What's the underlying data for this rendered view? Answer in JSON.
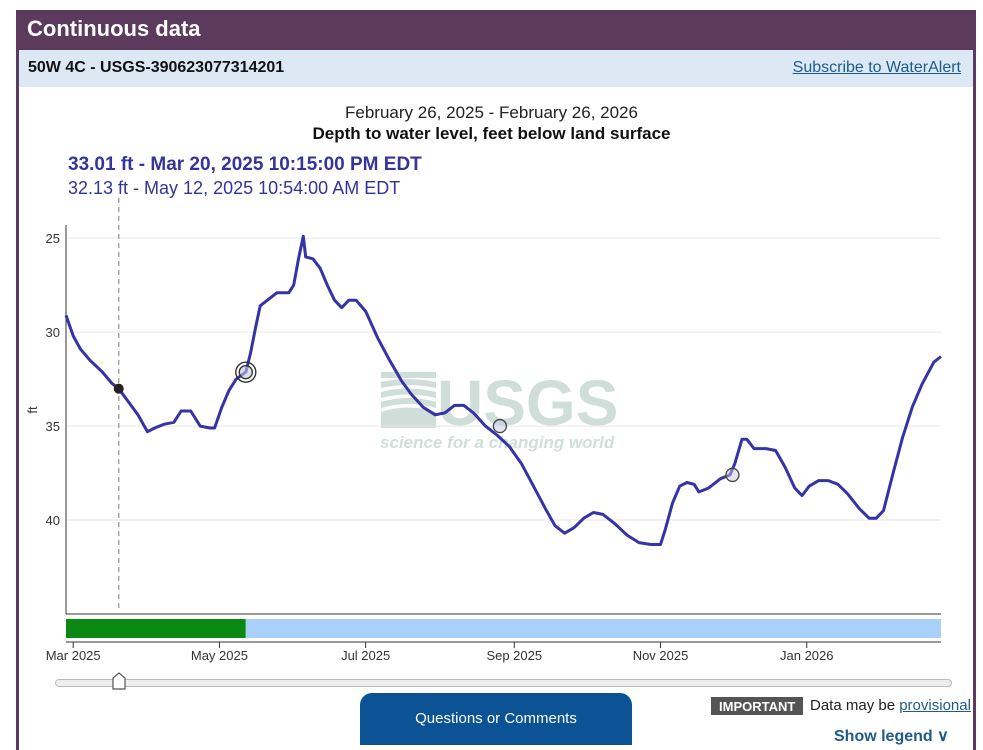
{
  "header": {
    "title": "Continuous data"
  },
  "site": {
    "name": "50W 4C - USGS-390623077314201",
    "subscribe_label": "Subscribe to WaterAlert"
  },
  "tooltip": {
    "primary": "33.01 ft - Mar 20, 2025 10:15:00 PM EDT",
    "secondary": "32.13 ft - May 12, 2025 10:54:00 AM EDT"
  },
  "watermark": {
    "logo": "USGS",
    "tagline": "science for a changing world"
  },
  "chart_data": {
    "type": "line",
    "title": "February 26, 2025 - February 26, 2026",
    "subtitle": "Depth to water level, feet below land surface",
    "ylabel": "ft",
    "y_inverted": true,
    "ylim": [
      24.3,
      45
    ],
    "y_ticks": [
      25,
      30,
      35,
      40
    ],
    "xlim": [
      "2025-02-26",
      "2026-02-26"
    ],
    "x_ticks": [
      {
        "date": "2025-03-01",
        "label": "Mar 2025"
      },
      {
        "date": "2025-05-01",
        "label": "May 2025"
      },
      {
        "date": "2025-07-01",
        "label": "Jul 2025"
      },
      {
        "date": "2025-09-01",
        "label": "Sep 2025"
      },
      {
        "date": "2025-11-01",
        "label": "Nov 2025"
      },
      {
        "date": "2026-01-01",
        "label": "Jan 2026"
      }
    ],
    "grid": true,
    "line_color": "#3434a6",
    "series": [
      {
        "points": [
          [
            "2025-02-26",
            29.1
          ],
          [
            "2025-03-01",
            30.2
          ],
          [
            "2025-03-04",
            30.9
          ],
          [
            "2025-03-08",
            31.5
          ],
          [
            "2025-03-13",
            32.1
          ],
          [
            "2025-03-17",
            32.7
          ],
          [
            "2025-03-20",
            33.01
          ],
          [
            "2025-03-24",
            33.7
          ],
          [
            "2025-03-28",
            34.4
          ],
          [
            "2025-04-01",
            35.3
          ],
          [
            "2025-04-04",
            35.1
          ],
          [
            "2025-04-08",
            34.9
          ],
          [
            "2025-04-12",
            34.8
          ],
          [
            "2025-04-15",
            34.2
          ],
          [
            "2025-04-19",
            34.2
          ],
          [
            "2025-04-23",
            35.0
          ],
          [
            "2025-04-27",
            35.1
          ],
          [
            "2025-04-29",
            35.1
          ],
          [
            "2025-05-02",
            34.0
          ],
          [
            "2025-05-05",
            33.1
          ],
          [
            "2025-05-08",
            32.5
          ],
          [
            "2025-05-12",
            32.13
          ],
          [
            "2025-05-14",
            31.1
          ],
          [
            "2025-05-16",
            29.8
          ],
          [
            "2025-05-18",
            28.6
          ],
          [
            "2025-05-22",
            28.2
          ],
          [
            "2025-05-25",
            27.9
          ],
          [
            "2025-05-30",
            27.9
          ],
          [
            "2025-06-01",
            27.5
          ],
          [
            "2025-06-03",
            26.1
          ],
          [
            "2025-06-05",
            24.9
          ],
          [
            "2025-06-06",
            26.0
          ],
          [
            "2025-06-09",
            26.1
          ],
          [
            "2025-06-12",
            26.6
          ],
          [
            "2025-06-15",
            27.5
          ],
          [
            "2025-06-18",
            28.3
          ],
          [
            "2025-06-21",
            28.7
          ],
          [
            "2025-06-24",
            28.3
          ],
          [
            "2025-06-27",
            28.3
          ],
          [
            "2025-07-01",
            28.9
          ],
          [
            "2025-07-06",
            30.3
          ],
          [
            "2025-07-11",
            31.5
          ],
          [
            "2025-07-16",
            32.6
          ],
          [
            "2025-07-20",
            33.3
          ],
          [
            "2025-07-25",
            34.0
          ],
          [
            "2025-07-30",
            34.4
          ],
          [
            "2025-08-03",
            34.3
          ],
          [
            "2025-08-07",
            33.9
          ],
          [
            "2025-08-11",
            33.9
          ],
          [
            "2025-08-15",
            34.3
          ],
          [
            "2025-08-20",
            35.0
          ],
          [
            "2025-08-25",
            35.5
          ],
          [
            "2025-08-30",
            36.1
          ],
          [
            "2025-09-04",
            37.0
          ],
          [
            "2025-09-09",
            38.2
          ],
          [
            "2025-09-14",
            39.4
          ],
          [
            "2025-09-18",
            40.3
          ],
          [
            "2025-09-22",
            40.7
          ],
          [
            "2025-09-26",
            40.4
          ],
          [
            "2025-09-30",
            39.9
          ],
          [
            "2025-10-04",
            39.6
          ],
          [
            "2025-10-08",
            39.7
          ],
          [
            "2025-10-13",
            40.2
          ],
          [
            "2025-10-18",
            40.8
          ],
          [
            "2025-10-23",
            41.2
          ],
          [
            "2025-10-28",
            41.3
          ],
          [
            "2025-11-01",
            41.3
          ],
          [
            "2025-11-03",
            40.5
          ],
          [
            "2025-11-06",
            39.1
          ],
          [
            "2025-11-09",
            38.2
          ],
          [
            "2025-11-12",
            38.0
          ],
          [
            "2025-11-15",
            38.1
          ],
          [
            "2025-11-17",
            38.5
          ],
          [
            "2025-11-21",
            38.3
          ],
          [
            "2025-11-26",
            37.8
          ],
          [
            "2025-11-30",
            37.6
          ],
          [
            "2025-12-02",
            37.0
          ],
          [
            "2025-12-05",
            35.7
          ],
          [
            "2025-12-07",
            35.7
          ],
          [
            "2025-12-10",
            36.2
          ],
          [
            "2025-12-15",
            36.2
          ],
          [
            "2025-12-19",
            36.3
          ],
          [
            "2025-12-23",
            37.2
          ],
          [
            "2025-12-27",
            38.3
          ],
          [
            "2025-12-30",
            38.7
          ],
          [
            "2026-01-02",
            38.2
          ],
          [
            "2026-01-06",
            37.9
          ],
          [
            "2026-01-10",
            37.9
          ],
          [
            "2026-01-14",
            38.1
          ],
          [
            "2026-01-18",
            38.6
          ],
          [
            "2026-01-23",
            39.4
          ],
          [
            "2026-01-27",
            39.9
          ],
          [
            "2026-01-30",
            39.9
          ],
          [
            "2026-02-02",
            39.5
          ],
          [
            "2026-02-06",
            37.5
          ],
          [
            "2026-02-10",
            35.6
          ],
          [
            "2026-02-14",
            34.0
          ],
          [
            "2026-02-18",
            32.8
          ],
          [
            "2026-02-23",
            31.6
          ],
          [
            "2026-02-26",
            31.3
          ]
        ]
      }
    ],
    "marked_points": [
      {
        "date": "2025-03-20",
        "value": 33.01,
        "style": "filled"
      },
      {
        "date": "2025-05-12",
        "value": 32.13,
        "style": "double-ring"
      },
      {
        "date": "2025-08-26",
        "value": 35.0,
        "style": "ring"
      },
      {
        "date": "2025-12-01",
        "value": 37.6,
        "style": "ring"
      }
    ],
    "cursor_date": "2025-03-20",
    "approval_bar": [
      {
        "start": "2025-02-26",
        "end": "2025-05-12",
        "status": "approved",
        "color": "#0a8a12"
      },
      {
        "start": "2025-05-12",
        "end": "2026-02-26",
        "status": "provisional",
        "color": "#a8d0f8"
      }
    ]
  },
  "brush": {
    "handle_date": "2025-03-20"
  },
  "footer": {
    "questions_label": "Questions or Comments",
    "important_label": "IMPORTANT",
    "provisional_prefix": "Data may be",
    "provisional_link": "provisional",
    "show_legend_label": "Show legend ∨"
  }
}
